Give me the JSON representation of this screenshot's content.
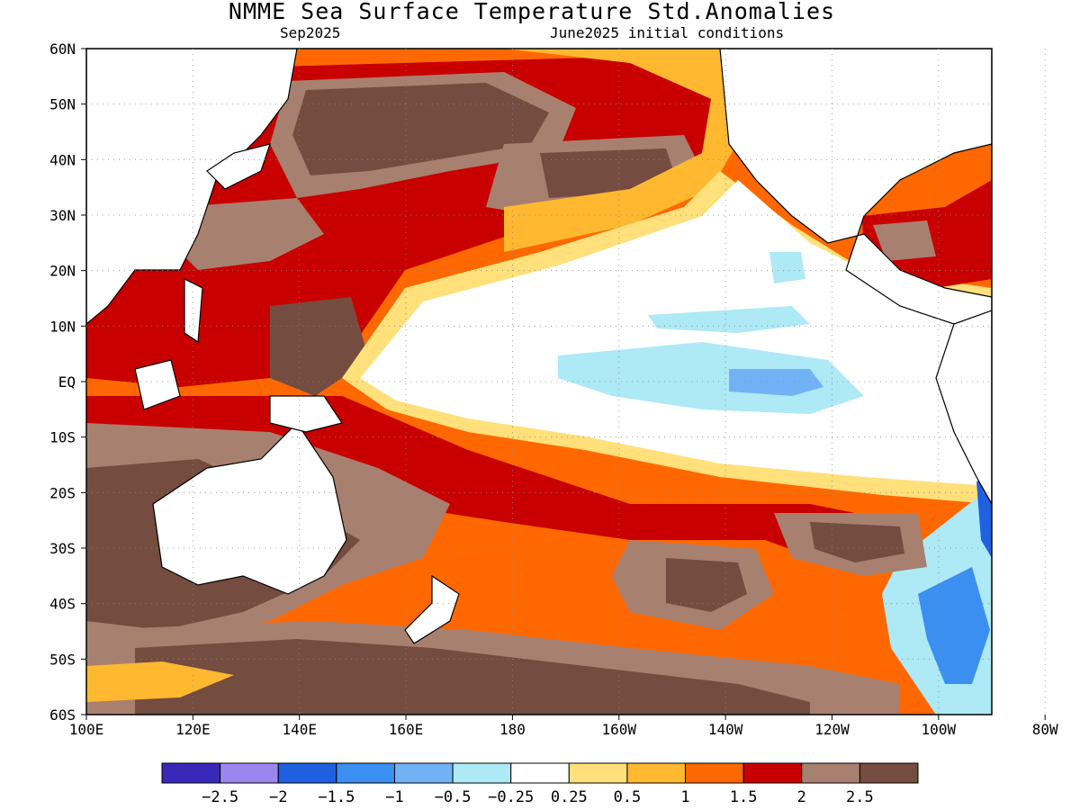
{
  "title": "NMME Sea Surface Temperature Std.Anomalies",
  "subtitle_left": "Sep2025",
  "subtitle_right": "June2025 initial conditions",
  "map": {
    "lon_range": [
      "100E",
      "70W"
    ],
    "lat_range": [
      "60S",
      "60N"
    ],
    "lat_labels": [
      "60N",
      "50N",
      "40N",
      "30N",
      "20N",
      "10N",
      "EQ",
      "10S",
      "20S",
      "30S",
      "40S",
      "50S",
      "60S"
    ],
    "lon_labels": [
      "100E",
      "120E",
      "140E",
      "160E",
      "180",
      "160W",
      "140W",
      "120W",
      "100W",
      "80W"
    ],
    "grid": "dotted"
  },
  "colorbar": {
    "colors": [
      "#3a28b8",
      "#9b86f0",
      "#1f60e0",
      "#3a8ff0",
      "#70b2f5",
      "#aee9f6",
      "#ffffff",
      "#ffe07a",
      "#ffb830",
      "#ff6800",
      "#c80000",
      "#a88070",
      "#744c40"
    ],
    "labels": [
      "−2.5",
      "−2",
      "−1.5",
      "−1",
      "−0.5",
      "−0.25",
      "0.25",
      "0.5",
      "1",
      "1.5",
      "2",
      "2.5"
    ]
  },
  "palette": {
    "land": "#ffffff",
    "neutral": "#ffffff",
    "w05": "#ffe07a",
    "w1": "#ffb830",
    "w15": "#ff6800",
    "w2": "#c80000",
    "w25": "#a88070",
    "w3": "#744c40",
    "c025": "#aee9f6",
    "c05": "#70b2f5",
    "c1": "#3a8ff0",
    "c15": "#1f60e0"
  }
}
